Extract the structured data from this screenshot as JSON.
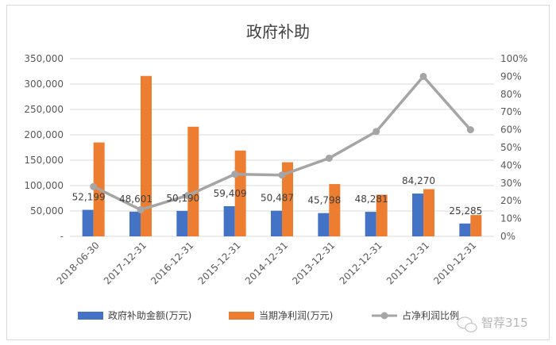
{
  "chart_data": {
    "type": "bar",
    "title": "政府补助",
    "categories": [
      "2018-06-30",
      "2017-12-31",
      "2016-12-31",
      "2015-12-31",
      "2014-12-31",
      "2013-12-31",
      "2012-12-31",
      "2011-12-31",
      "2010-12-31"
    ],
    "series": [
      {
        "name": "政府补助金额(万元)",
        "type": "bar",
        "axis": "left",
        "color": "#4472c4",
        "values": [
          52199,
          48601,
          50190,
          59409,
          50487,
          45798,
          48281,
          84270,
          25285
        ],
        "labels": [
          "52,199",
          "48,601",
          "50,190",
          "59,409",
          "50,487",
          "45,798",
          "48,281",
          "84,270",
          "25,285"
        ]
      },
      {
        "name": "当期净利润(万元)",
        "type": "bar",
        "axis": "left",
        "color": "#ed7d31",
        "values": [
          185000,
          316000,
          216000,
          169000,
          146000,
          103000,
          82000,
          93000,
          42000
        ]
      },
      {
        "name": "占净利润比例",
        "type": "line",
        "axis": "right",
        "color": "#a5a5a5",
        "values": [
          0.28,
          0.15,
          0.23,
          0.35,
          0.345,
          0.44,
          0.59,
          0.9,
          0.6
        ]
      }
    ],
    "left_axis": {
      "ylim": [
        0,
        350000
      ],
      "ticks": [
        "-",
        "50,000",
        "100,000",
        "150,000",
        "200,000",
        "250,000",
        "300,000",
        "350,000"
      ]
    },
    "right_axis": {
      "ylim": [
        0,
        1
      ],
      "ticks": [
        "0%",
        "10%",
        "20%",
        "30%",
        "40%",
        "50%",
        "60%",
        "70%",
        "80%",
        "90%",
        "100%"
      ]
    },
    "grid": true,
    "legend": "bottom",
    "legend_labels": [
      "政府补助金额(万元)",
      "当期净利润(万元)",
      "占净利润比例"
    ]
  },
  "watermark": "智荐315"
}
